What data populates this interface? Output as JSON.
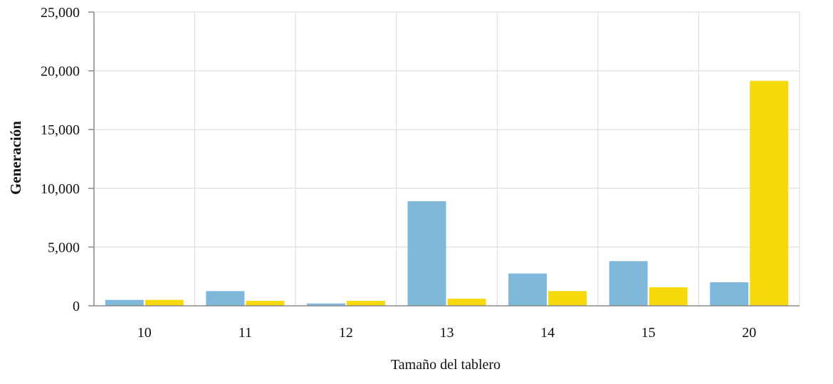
{
  "colors": {
    "series_a": "#7fb8da",
    "series_b": "#f5d90a",
    "grid": "#d9d9d9",
    "axis": "#888888"
  },
  "chart_data": {
    "type": "bar",
    "xlabel": "Tamaño del tablero",
    "ylabel": "Generación",
    "categories": [
      "10",
      "11",
      "12",
      "13",
      "14",
      "15",
      "20"
    ],
    "series": [
      {
        "values": [
          500,
          1250,
          200,
          8900,
          2750,
          3800,
          2000
        ]
      },
      {
        "values": [
          500,
          420,
          420,
          600,
          1250,
          1570,
          19150
        ]
      }
    ],
    "ylim": [
      0,
      25000
    ],
    "yticks": [
      0,
      5000,
      10000,
      15000,
      20000,
      25000
    ],
    "ytick_labels": [
      "0",
      "5,000",
      "10,000",
      "15,000",
      "20,000",
      "25,000"
    ],
    "grid": true,
    "legend": "none"
  }
}
